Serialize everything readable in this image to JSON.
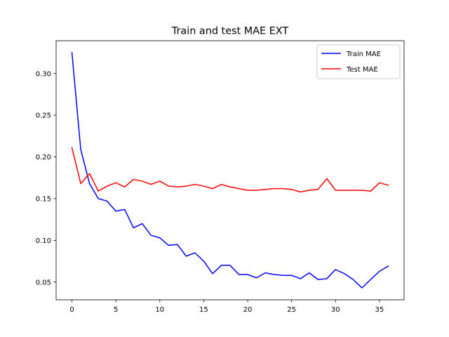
{
  "chart_data": {
    "type": "line",
    "title": "Train and test MAE EXT",
    "xlabel": "",
    "ylabel": "",
    "xlim": [
      -1.8,
      37.8
    ],
    "ylim": [
      0.0287,
      0.3393
    ],
    "xticks": [
      0,
      5,
      10,
      15,
      20,
      25,
      30,
      35
    ],
    "yticks": [
      0.05,
      0.1,
      0.15,
      0.2,
      0.25,
      0.3
    ],
    "ytick_labels": [
      "0.05",
      "0.10",
      "0.15",
      "0.20",
      "0.25",
      "0.30"
    ],
    "grid": false,
    "legend_position": "top-right",
    "x": [
      0,
      1,
      2,
      3,
      4,
      5,
      6,
      7,
      8,
      9,
      10,
      11,
      12,
      13,
      14,
      15,
      16,
      17,
      18,
      19,
      20,
      21,
      22,
      23,
      24,
      25,
      26,
      27,
      28,
      29,
      30,
      31,
      32,
      33,
      34,
      35,
      36
    ],
    "series": [
      {
        "name": "Train MAE",
        "color": "#0000ff",
        "values": [
          0.325,
          0.209,
          0.168,
          0.15,
          0.147,
          0.135,
          0.137,
          0.115,
          0.12,
          0.106,
          0.103,
          0.094,
          0.095,
          0.081,
          0.085,
          0.075,
          0.06,
          0.07,
          0.07,
          0.059,
          0.059,
          0.055,
          0.061,
          0.059,
          0.058,
          0.058,
          0.054,
          0.061,
          0.053,
          0.054,
          0.065,
          0.06,
          0.053,
          0.043,
          0.053,
          0.063,
          0.069
        ]
      },
      {
        "name": "Test MAE",
        "color": "#ff0000",
        "values": [
          0.211,
          0.168,
          0.18,
          0.159,
          0.165,
          0.169,
          0.164,
          0.173,
          0.171,
          0.167,
          0.171,
          0.165,
          0.164,
          0.165,
          0.167,
          0.165,
          0.162,
          0.167,
          0.164,
          0.162,
          0.16,
          0.16,
          0.161,
          0.162,
          0.162,
          0.161,
          0.158,
          0.16,
          0.161,
          0.174,
          0.16,
          0.16,
          0.16,
          0.16,
          0.159,
          0.169,
          0.166
        ]
      }
    ]
  }
}
